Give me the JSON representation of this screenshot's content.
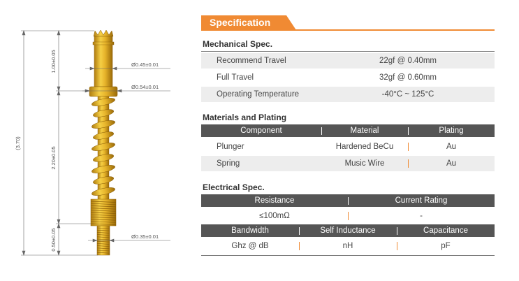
{
  "drawing": {
    "overall_dim": "(3.70)",
    "segments": [
      "1.00±0.05",
      "2.20±0.05",
      "0.50±0.05"
    ],
    "diameters": [
      "Ø0.45±0.01",
      "Ø0.54±0.01",
      "Ø0.35±0.01"
    ]
  },
  "spec": {
    "title": "Specification",
    "mechanical": {
      "title": "Mechanical Spec.",
      "rows": [
        {
          "label": "Recommend Travel",
          "value": "22gf @ 0.40mm"
        },
        {
          "label": "Full Travel",
          "value": "32gf @ 0.60mm"
        },
        {
          "label": "Operating Temperature",
          "value": "-40°C ~ 125°C"
        }
      ]
    },
    "materials": {
      "title": "Materials and Plating",
      "headers": [
        "Component",
        "Material",
        "Plating"
      ],
      "rows": [
        [
          "Plunger",
          "Hardened BeCu",
          "Au"
        ],
        [
          "Spring",
          "Music Wire",
          "Au"
        ]
      ]
    },
    "electrical": {
      "title": "Electrical Spec.",
      "headers1": [
        "Resistance",
        "Current Rating"
      ],
      "row1": [
        "≤100mΩ",
        "-"
      ],
      "headers2": [
        "Bandwidth",
        "Self Inductance",
        "Capacitance"
      ],
      "row2": [
        "Ghz @ dB",
        "nH",
        "pF"
      ]
    }
  },
  "colors": {
    "accent": "#f08a33",
    "header_bg": "#555555",
    "gold": "#e0a820"
  }
}
